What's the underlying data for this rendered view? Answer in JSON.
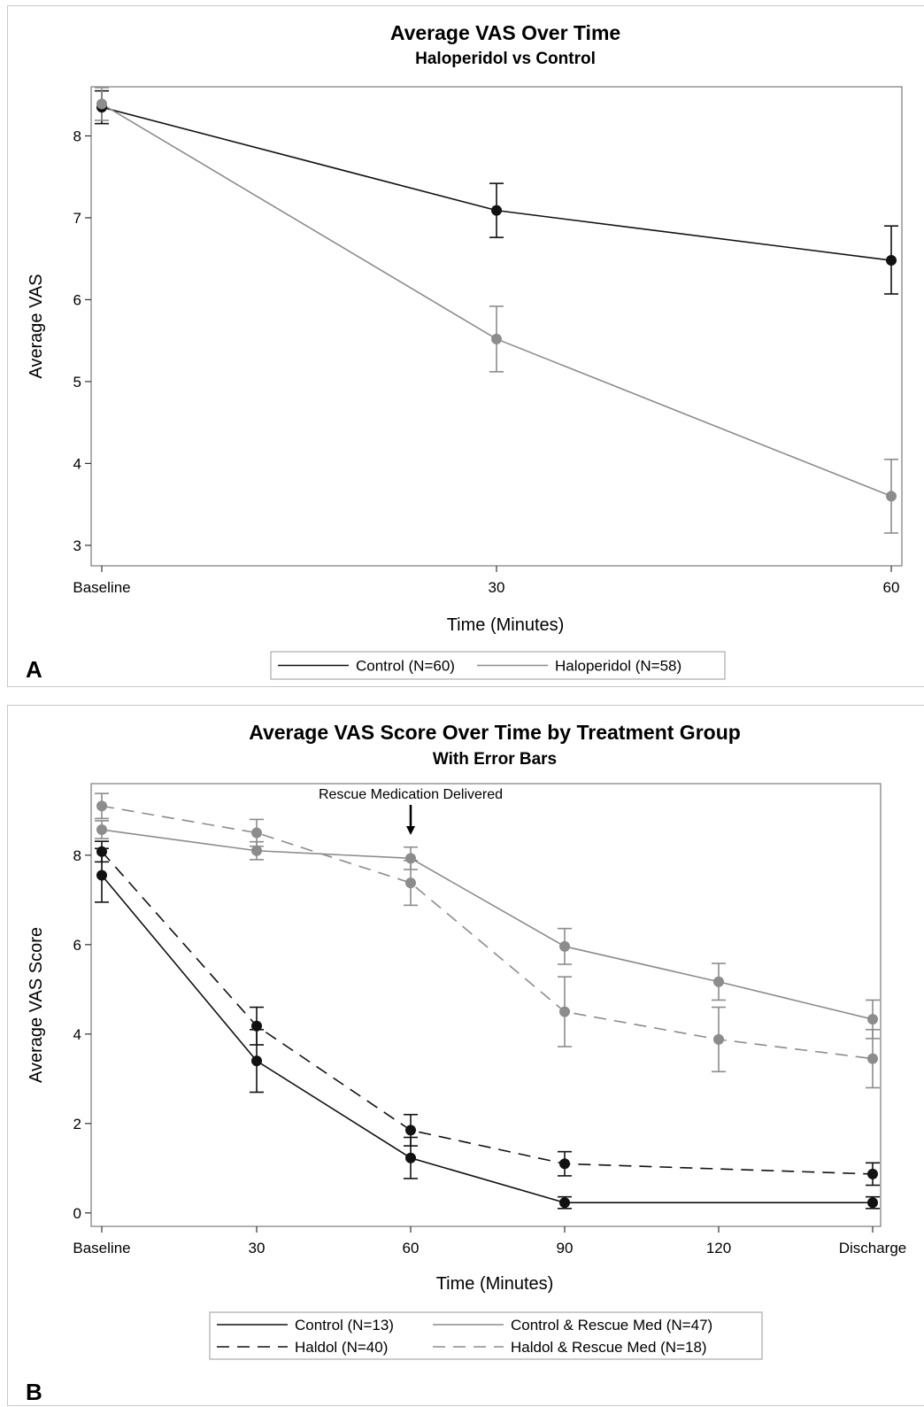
{
  "chart_data": [
    {
      "panel_label": "A",
      "type": "line",
      "title": "Average VAS Over Time",
      "subtitle": "Haloperidol vs Control",
      "xlabel": "Time (Minutes)",
      "ylabel": "Average VAS",
      "categories": [
        "Baseline",
        "30",
        "60"
      ],
      "yticks": [
        "3",
        "4",
        "5",
        "6",
        "7",
        "8"
      ],
      "ylim": [
        2.75,
        8.6
      ],
      "grid": false,
      "legend_position": "bottom",
      "series": [
        {
          "name": "Control (N=60)",
          "color": "#111111",
          "dash": "solid",
          "values": [
            8.35,
            7.09,
            6.48
          ],
          "error_low": [
            8.15,
            6.76,
            6.07
          ],
          "error_high": [
            8.55,
            7.42,
            6.9
          ]
        },
        {
          "name": "Haloperidol (N=58)",
          "color": "#8c8c8c",
          "dash": "solid",
          "values": [
            8.39,
            5.52,
            3.6
          ],
          "error_low": [
            8.19,
            5.12,
            3.15
          ],
          "error_high": [
            8.59,
            5.92,
            4.05
          ]
        }
      ]
    },
    {
      "panel_label": "B",
      "type": "line",
      "title": "Average VAS Score Over Time by Treatment Group",
      "subtitle": "With Error Bars",
      "xlabel": "Time (Minutes)",
      "ylabel": "Average VAS Score",
      "categories": [
        "Baseline",
        "30",
        "60",
        "90",
        "120",
        "Discharge"
      ],
      "yticks": [
        "0",
        "2",
        "4",
        "6",
        "8"
      ],
      "ylim": [
        -0.3,
        9.6
      ],
      "grid": false,
      "legend_position": "bottom",
      "annotation": {
        "text": "Rescue Medication Delivered",
        "x_category": "60"
      },
      "series": [
        {
          "name": "Control (N=13)",
          "color": "#111111",
          "dash": "solid",
          "values": [
            7.55,
            3.4,
            1.23,
            0.23,
            null,
            0.23
          ],
          "error_low": [
            6.95,
            2.7,
            0.77,
            0.1,
            null,
            0.1
          ],
          "error_high": [
            8.15,
            4.1,
            1.69,
            0.36,
            null,
            0.36
          ]
        },
        {
          "name": "Control & Rescue Med (N=47)",
          "color": "#8c8c8c",
          "dash": "solid",
          "values": [
            8.57,
            8.1,
            7.93,
            5.96,
            5.17,
            4.33
          ],
          "error_low": [
            8.37,
            7.9,
            7.68,
            5.56,
            4.76,
            3.9
          ],
          "error_high": [
            8.77,
            8.3,
            8.18,
            6.36,
            5.58,
            4.76
          ]
        },
        {
          "name": "Haldol (N=40)",
          "color": "#111111",
          "dash": "dashed",
          "values": [
            8.08,
            4.18,
            1.85,
            1.1,
            null,
            0.87
          ],
          "error_low": [
            7.85,
            3.76,
            1.5,
            0.83,
            null,
            0.62
          ],
          "error_high": [
            8.31,
            4.6,
            2.2,
            1.37,
            null,
            1.12
          ]
        },
        {
          "name": "Haldol & Rescue Med (N=18)",
          "color": "#8c8c8c",
          "dash": "dashed",
          "values": [
            9.1,
            8.5,
            7.38,
            4.5,
            3.88,
            3.45
          ],
          "error_low": [
            8.82,
            8.2,
            6.88,
            3.72,
            3.16,
            2.8
          ],
          "error_high": [
            9.38,
            8.8,
            7.88,
            5.28,
            4.6,
            4.1
          ]
        }
      ]
    }
  ]
}
